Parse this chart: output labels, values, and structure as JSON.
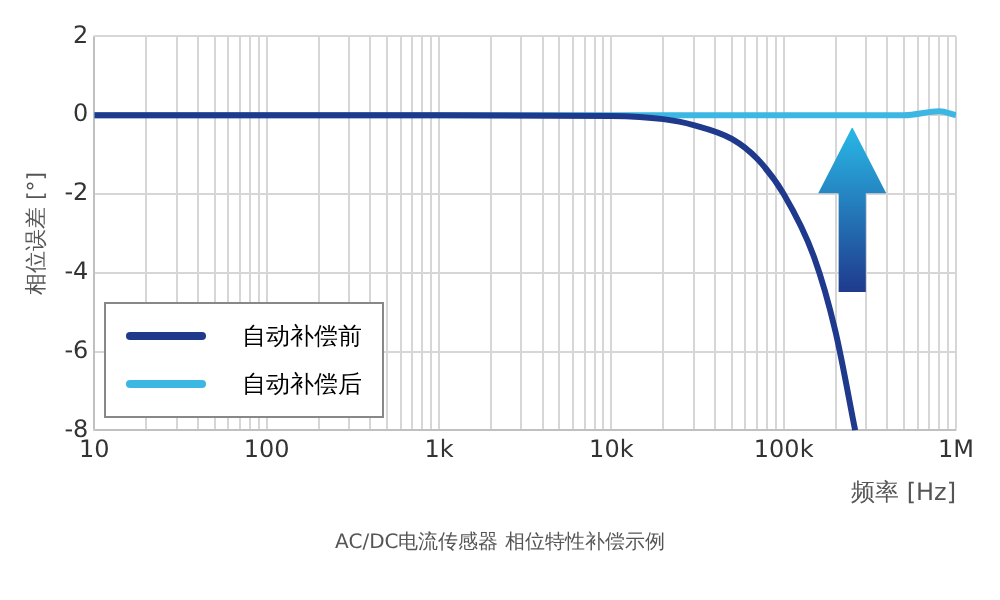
{
  "chart_data": {
    "type": "line",
    "xlabel": "频率 [Hz]",
    "ylabel": "相位误差 [°]",
    "annotations": [
      "AC/DC电流传感器 相位特性补偿示例"
    ],
    "xlim": [
      10,
      1000000
    ],
    "ylim": [
      -8,
      2
    ],
    "yticks": [
      -8,
      -6,
      -4,
      -2,
      0,
      2
    ],
    "xticks": [
      {
        "value": 10,
        "label": "10"
      },
      {
        "value": 20,
        "label": null
      },
      {
        "value": 30,
        "label": null
      },
      {
        "value": 40,
        "label": null
      },
      {
        "value": 50,
        "label": null
      },
      {
        "value": 60,
        "label": null
      },
      {
        "value": 70,
        "label": null
      },
      {
        "value": 80,
        "label": null
      },
      {
        "value": 90,
        "label": null
      },
      {
        "value": 100,
        "label": "100"
      },
      {
        "value": 200,
        "label": null
      },
      {
        "value": 300,
        "label": null
      },
      {
        "value": 400,
        "label": null
      },
      {
        "value": 500,
        "label": null
      },
      {
        "value": 600,
        "label": null
      },
      {
        "value": 700,
        "label": null
      },
      {
        "value": 800,
        "label": null
      },
      {
        "value": 900,
        "label": null
      },
      {
        "value": 1000,
        "label": "1k"
      },
      {
        "value": 2000,
        "label": null
      },
      {
        "value": 3000,
        "label": null
      },
      {
        "value": 4000,
        "label": null
      },
      {
        "value": 5000,
        "label": null
      },
      {
        "value": 6000,
        "label": null
      },
      {
        "value": 7000,
        "label": null
      },
      {
        "value": 8000,
        "label": null
      },
      {
        "value": 9000,
        "label": null
      },
      {
        "value": 10000,
        "label": "10k"
      },
      {
        "value": 20000,
        "label": null
      },
      {
        "value": 30000,
        "label": null
      },
      {
        "value": 40000,
        "label": null
      },
      {
        "value": 50000,
        "label": null
      },
      {
        "value": 60000,
        "label": null
      },
      {
        "value": 70000,
        "label": null
      },
      {
        "value": 80000,
        "label": null
      },
      {
        "value": 90000,
        "label": null
      },
      {
        "value": 100000,
        "label": "100k"
      },
      {
        "value": 200000,
        "label": null
      },
      {
        "value": 300000,
        "label": null
      },
      {
        "value": 400000,
        "label": null
      },
      {
        "value": 500000,
        "label": null
      },
      {
        "value": 600000,
        "label": null
      },
      {
        "value": 700000,
        "label": null
      },
      {
        "value": 800000,
        "label": null
      },
      {
        "value": 900000,
        "label": null
      },
      {
        "value": 1000000,
        "label": "1M"
      }
    ],
    "log": "x",
    "grid": true,
    "legend": "bottom left",
    "marker": "none",
    "line_style": "solid",
    "series": [
      {
        "name": "自动补偿前",
        "color": "#1f3a8c",
        "x": [
          10,
          1000,
          10000,
          20000,
          30000,
          50000,
          70000,
          100000,
          150000,
          200000,
          260000
        ],
        "values": [
          0,
          0,
          -0.02,
          -0.1,
          -0.25,
          -0.6,
          -1.1,
          -2,
          -3.6,
          -5.5,
          -8
        ]
      },
      {
        "name": "自动补偿后",
        "color": "#3cb6e3",
        "x": [
          10,
          1000,
          10000,
          100000,
          500000,
          800000,
          1000000
        ],
        "values": [
          0,
          0,
          0,
          0,
          0,
          0.1,
          0
        ]
      }
    ]
  }
}
